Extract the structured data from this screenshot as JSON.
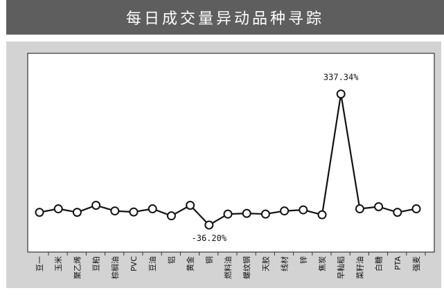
{
  "header": {
    "title": "每日成交量异动品种寻踪"
  },
  "chart_data": {
    "type": "line",
    "title": "",
    "xlabel": "",
    "ylabel": "",
    "grid": false,
    "categories": [
      "豆一",
      "玉米",
      "聚乙烯",
      "豆粕",
      "棕榈油",
      "PVC",
      "豆油",
      "铝",
      "黄金",
      "铜",
      "燃料油",
      "螺纹钢",
      "天胶",
      "线材",
      "锌",
      "焦炭",
      "早籼稻",
      "菜籽油",
      "白糖",
      "PTA",
      "强麦"
    ],
    "values": [
      0,
      10,
      0,
      20,
      4,
      1,
      10,
      -10,
      20,
      -36.2,
      -5,
      -3,
      -5,
      4,
      7,
      -7,
      337.34,
      10,
      16,
      0,
      10
    ],
    "ylim": [
      -60,
      400
    ],
    "annotations": [
      {
        "category": "早籼稻",
        "text": "337.34%"
      },
      {
        "category": "铜",
        "text": "-36.20%"
      }
    ],
    "colors": {
      "line": "#111111",
      "marker_fill": "#ffffff",
      "plot_bg": "#ffffff",
      "panel_bg": "#d3d3d3"
    }
  }
}
